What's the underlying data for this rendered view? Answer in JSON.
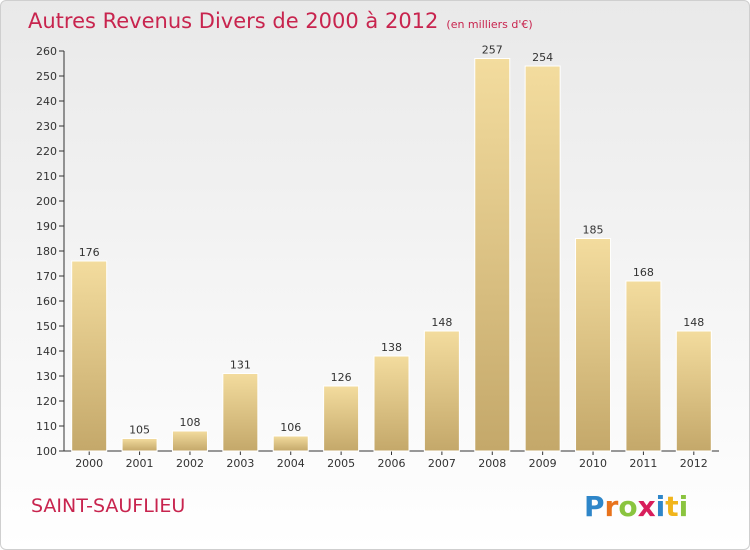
{
  "chart_data": {
    "type": "bar",
    "title": "Autres Revenus Divers de 2000 à 2012",
    "subtitle": "(en milliers d'€)",
    "categories": [
      "2000",
      "2001",
      "2002",
      "2003",
      "2004",
      "2005",
      "2006",
      "2007",
      "2008",
      "2009",
      "2010",
      "2011",
      "2012"
    ],
    "values": [
      176,
      105,
      108,
      131,
      106,
      126,
      138,
      148,
      257,
      254,
      185,
      168,
      148
    ],
    "ylim": [
      100,
      260
    ],
    "yticks": [
      100,
      110,
      120,
      130,
      140,
      150,
      160,
      170,
      180,
      190,
      200,
      210,
      220,
      230,
      240,
      250,
      260
    ],
    "xlabel": "",
    "ylabel": "",
    "grid": false,
    "legend": "none",
    "colors": {
      "bar_top": "#f3dc9e",
      "bar_bottom": "#c4a86a",
      "title": "#c8244e",
      "axis": "#333333"
    }
  },
  "footer": {
    "town": "SAINT-SAUFLIEU",
    "brand": "Proxiti"
  }
}
